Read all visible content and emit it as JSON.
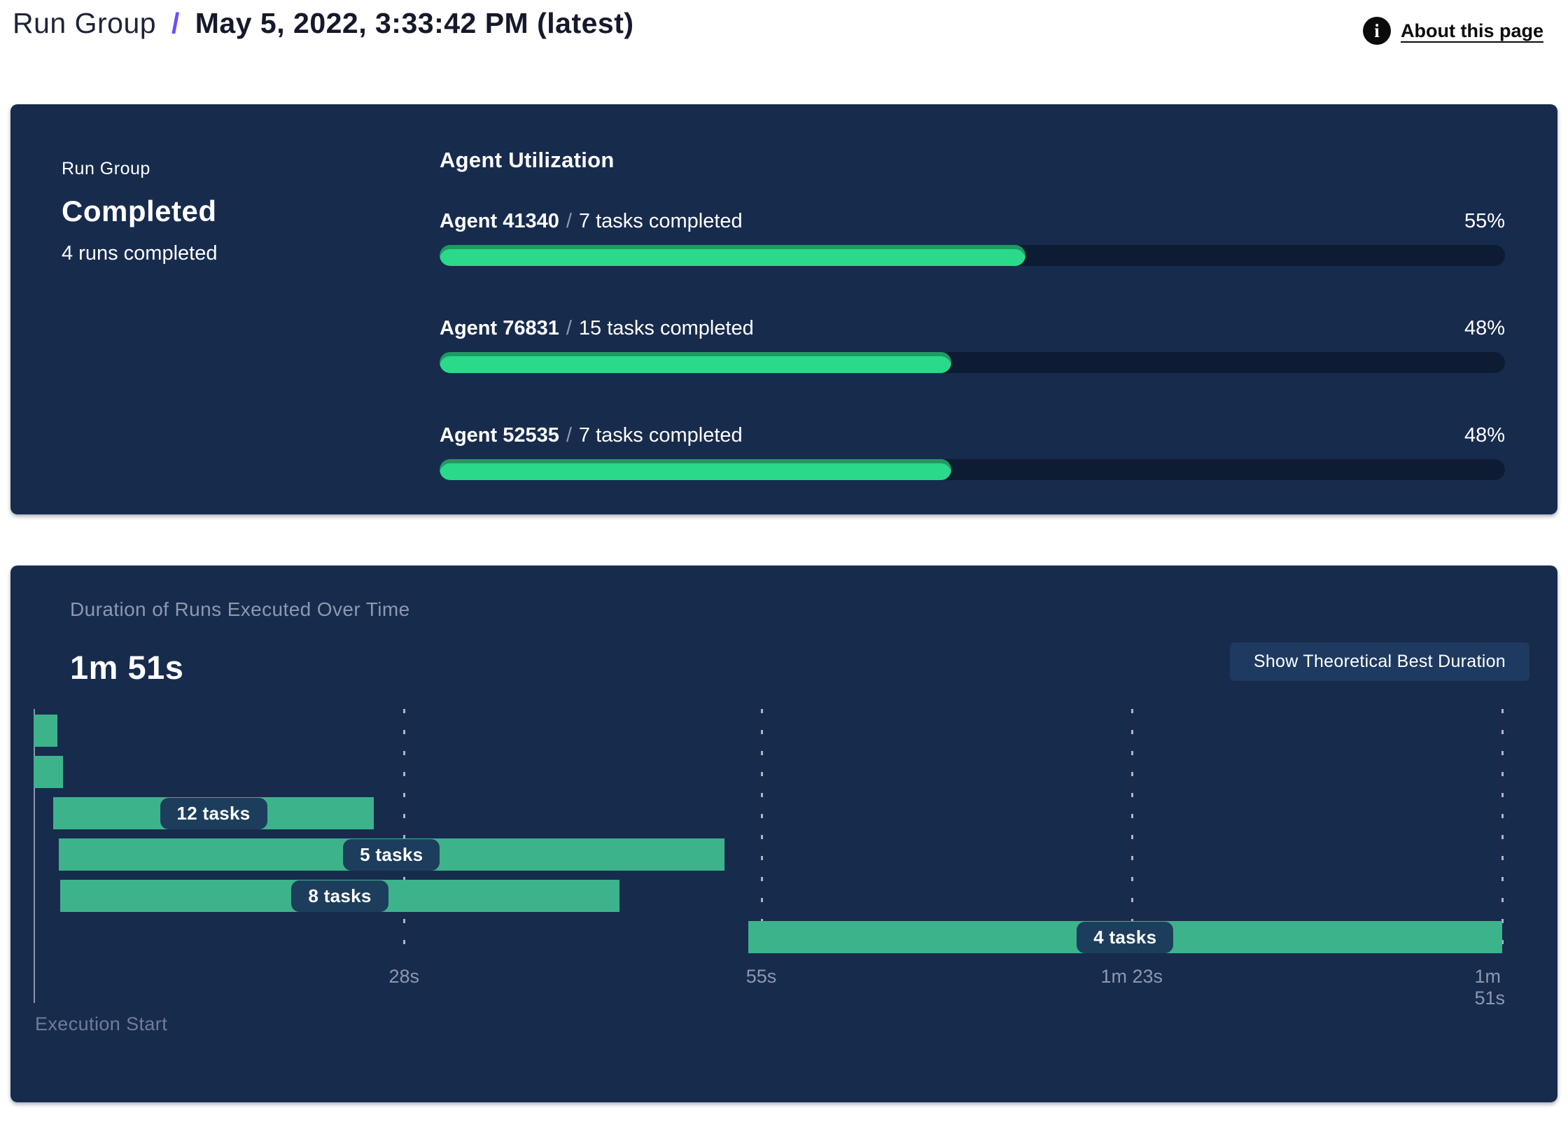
{
  "colors": {
    "panel_bg": "#172b4d",
    "progress_fill": "#2bd98b",
    "progress_track": "#0d1c33",
    "gantt_bar": "#3db38c",
    "pill_bg": "#1d3d5c",
    "accent_slash": "#6c4df6",
    "muted_text": "#8c99ae",
    "button_bg": "#1e3a60"
  },
  "header": {
    "breadcrumb_root": "Run Group",
    "separator": "/",
    "title": "May 5, 2022, 3:33:42 PM (latest)",
    "info_icon": "i",
    "about_link": "About this page"
  },
  "status_panel": {
    "label": "Run Group",
    "status": "Completed",
    "sub": "4 runs completed",
    "utilization": {
      "title": "Agent Utilization",
      "slash": "/",
      "agents": [
        {
          "name": "Agent 41340",
          "tasks": "7 tasks completed",
          "percent": "55%",
          "value": 55
        },
        {
          "name": "Agent 76831",
          "tasks": "15 tasks completed",
          "percent": "48%",
          "value": 48
        },
        {
          "name": "Agent 52535",
          "tasks": "7 tasks completed",
          "percent": "48%",
          "value": 48
        }
      ]
    }
  },
  "duration_panel": {
    "title": "Duration of Runs Executed Over Time",
    "total": "1m 51s",
    "button": "Show Theoretical Best Duration",
    "axis_label": "Execution Start"
  },
  "chart_data": {
    "type": "gantt",
    "title": "Duration of Runs Executed Over Time",
    "total_duration": "1m 51s",
    "x_axis_label": "Execution Start",
    "x_range_seconds": [
      0,
      111
    ],
    "grid": "dashed-vertical",
    "x_ticks": [
      {
        "label": "28s",
        "seconds": 28
      },
      {
        "label": "55s",
        "seconds": 55
      },
      {
        "label": "1m 23s",
        "seconds": 83
      },
      {
        "label": "1m 51s",
        "seconds": 111
      }
    ],
    "bars": [
      {
        "row": 0,
        "start_s": 0,
        "end_s": 1.8,
        "label": ""
      },
      {
        "row": 1,
        "start_s": 0,
        "end_s": 2.2,
        "label": ""
      },
      {
        "row": 2,
        "start_s": 1.5,
        "end_s": 25.7,
        "label": "12 tasks"
      },
      {
        "row": 3,
        "start_s": 1.9,
        "end_s": 52.2,
        "label": "5 tasks"
      },
      {
        "row": 4,
        "start_s": 2.0,
        "end_s": 44.3,
        "label": "8 tasks"
      },
      {
        "row": 5,
        "start_s": 54.0,
        "end_s": 111.0,
        "label": "4 tasks"
      }
    ]
  }
}
